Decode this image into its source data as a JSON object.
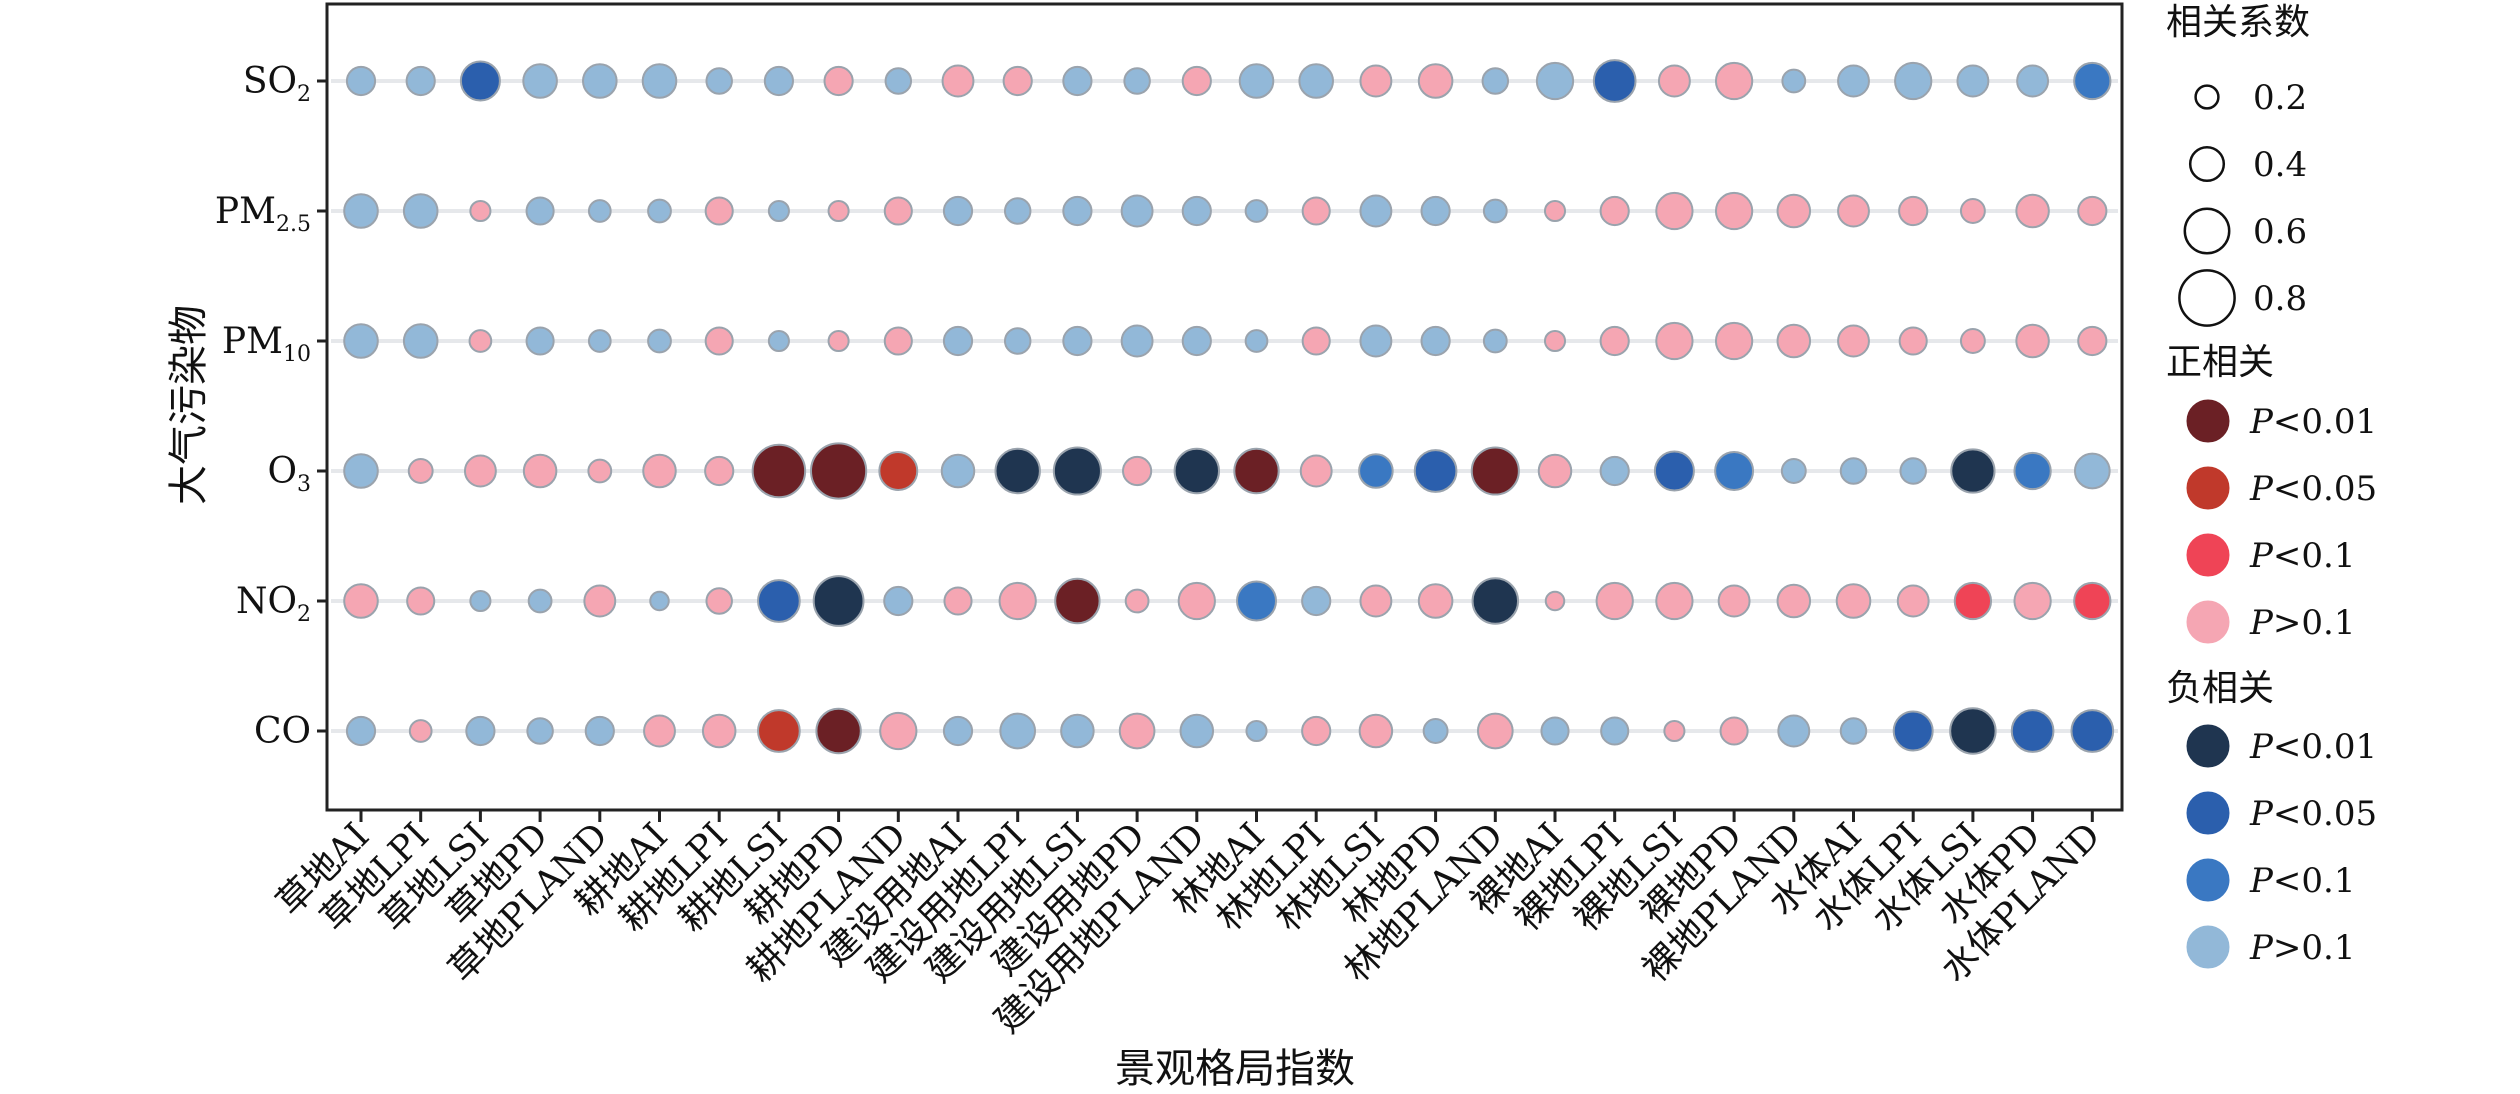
{
  "chart_data": {
    "type": "scatter",
    "subtype": "bubble-correlation-matrix",
    "xlabel": "景观格局指数",
    "ylabel": "大气污染物",
    "x_categories": [
      "草地AI",
      "草地LPI",
      "草地LSI",
      "草地PD",
      "草地PLAND",
      "耕地AI",
      "耕地LPI",
      "耕地LSI",
      "耕地PD",
      "耕地PLAND",
      "建设用地AI",
      "建设用地LPI",
      "建设用地LSI",
      "建设用地PD",
      "建设用地PLAND",
      "林地AI",
      "林地LPI",
      "林地LSI",
      "林地PD",
      "林地PLAND",
      "裸地AI",
      "裸地LPI",
      "裸地LSI",
      "裸地PD",
      "裸地PLAND",
      "水体AI",
      "水体LPI",
      "水体LSI",
      "水体PD",
      "水体PLAND"
    ],
    "y_categories": [
      {
        "base": "SO",
        "sub": "2"
      },
      {
        "base": "PM",
        "sub": "2.5"
      },
      {
        "base": "PM",
        "sub": "10"
      },
      {
        "base": "O",
        "sub": "3"
      },
      {
        "base": "NO",
        "sub": "2"
      },
      {
        "base": "CO",
        "sub": ""
      }
    ],
    "grid": "horizontal-guides",
    "legend": {
      "position": "right",
      "size_title": "相关系数",
      "size_entries": [
        0.2,
        0.4,
        0.6,
        0.8
      ],
      "positive_title": "正相关",
      "negative_title": "负相关",
      "p_prefix": "P",
      "sig_labels": [
        "<0.01",
        "<0.05",
        "<0.1",
        ">0.1"
      ]
    },
    "colors": {
      "positive": [
        "#6b2025",
        "#c0392b",
        "#ef4456",
        "#f5a6b3"
      ],
      "negative": [
        "#1f3550",
        "#2b5fad",
        "#3a78c2",
        "#92b8d8"
      ],
      "bubble_edge": "#9aa3ad",
      "guide": "#e6e8eb"
    },
    "rows": [
      {
        "pollutant": "SO2",
        "r": [
          -0.3,
          -0.3,
          -0.5,
          -0.4,
          -0.4,
          -0.4,
          -0.25,
          -0.3,
          0.3,
          -0.25,
          0.35,
          0.3,
          -0.3,
          -0.25,
          0.3,
          -0.4,
          -0.4,
          0.35,
          0.4,
          -0.25,
          -0.45,
          -0.55,
          0.35,
          0.45,
          -0.2,
          -0.35,
          -0.45,
          -0.35,
          -0.35,
          -0.45
        ],
        "sig": [
          3,
          3,
          1,
          3,
          3,
          3,
          3,
          3,
          3,
          3,
          3,
          3,
          3,
          3,
          3,
          3,
          3,
          3,
          3,
          3,
          3,
          1,
          3,
          3,
          3,
          3,
          3,
          3,
          3,
          2
        ]
      },
      {
        "pollutant": "PM2.5",
        "r": [
          -0.4,
          -0.4,
          0.15,
          -0.28,
          -0.18,
          -0.2,
          0.28,
          -0.15,
          0.15,
          0.28,
          -0.3,
          -0.25,
          -0.3,
          -0.35,
          -0.3,
          -0.18,
          0.28,
          -0.35,
          -0.3,
          -0.2,
          0.15,
          0.3,
          0.45,
          0.45,
          0.38,
          0.35,
          0.3,
          0.22,
          0.38,
          0.3
        ],
        "sig": [
          3,
          3,
          3,
          3,
          3,
          3,
          3,
          3,
          3,
          3,
          3,
          3,
          3,
          3,
          3,
          3,
          3,
          3,
          3,
          3,
          3,
          3,
          3,
          3,
          3,
          3,
          3,
          3,
          3,
          3
        ]
      },
      {
        "pollutant": "PM10",
        "r": [
          -0.4,
          -0.4,
          0.18,
          -0.28,
          -0.18,
          -0.2,
          0.28,
          -0.15,
          0.15,
          0.28,
          -0.3,
          -0.25,
          -0.3,
          -0.35,
          -0.3,
          -0.18,
          0.28,
          -0.35,
          -0.3,
          -0.2,
          0.15,
          0.3,
          0.45,
          0.45,
          0.38,
          0.35,
          0.28,
          0.22,
          0.38,
          0.3
        ],
        "sig": [
          3,
          3,
          3,
          3,
          3,
          3,
          3,
          3,
          3,
          3,
          3,
          3,
          3,
          3,
          3,
          3,
          3,
          3,
          3,
          3,
          3,
          3,
          3,
          3,
          3,
          3,
          3,
          3,
          3,
          3
        ]
      },
      {
        "pollutant": "O3",
        "r": [
          -0.4,
          0.22,
          0.35,
          0.38,
          0.2,
          0.38,
          0.3,
          0.75,
          0.8,
          0.48,
          -0.38,
          -0.6,
          -0.65,
          0.3,
          -0.6,
          0.6,
          0.35,
          -0.4,
          -0.55,
          0.65,
          0.38,
          -0.3,
          -0.5,
          -0.48,
          -0.22,
          -0.25,
          -0.25,
          -0.58,
          -0.45,
          -0.42
        ],
        "sig": [
          3,
          3,
          3,
          3,
          3,
          3,
          3,
          0,
          0,
          1,
          3,
          0,
          0,
          3,
          0,
          0,
          3,
          2,
          1,
          0,
          3,
          3,
          1,
          2,
          3,
          3,
          3,
          0,
          2,
          3
        ]
      },
      {
        "pollutant": "NO2",
        "r": [
          0.4,
          0.28,
          -0.15,
          -0.2,
          0.35,
          -0.12,
          0.25,
          -0.55,
          -0.7,
          -0.3,
          0.28,
          0.45,
          0.6,
          0.2,
          0.45,
          -0.5,
          -0.3,
          0.35,
          0.4,
          -0.62,
          0.12,
          0.45,
          0.45,
          0.35,
          0.38,
          0.4,
          0.35,
          0.45,
          0.45,
          0.45
        ],
        "sig": [
          3,
          3,
          3,
          3,
          3,
          3,
          3,
          1,
          0,
          3,
          3,
          3,
          0,
          3,
          3,
          2,
          3,
          3,
          3,
          0,
          3,
          3,
          3,
          3,
          3,
          3,
          3,
          2,
          3,
          2
        ]
      },
      {
        "pollutant": "CO",
        "r": [
          -0.3,
          0.18,
          -0.3,
          -0.25,
          -0.3,
          0.35,
          0.38,
          0.55,
          0.6,
          0.45,
          -0.3,
          -0.42,
          -0.38,
          0.42,
          -0.38,
          -0.15,
          0.3,
          0.38,
          -0.22,
          0.42,
          -0.28,
          -0.28,
          0.15,
          0.28,
          -0.35,
          -0.25,
          -0.5,
          -0.62,
          -0.55,
          -0.55
        ],
        "sig": [
          3,
          3,
          3,
          3,
          3,
          3,
          3,
          1,
          0,
          3,
          3,
          3,
          3,
          3,
          3,
          3,
          3,
          3,
          3,
          3,
          3,
          3,
          3,
          3,
          3,
          3,
          1,
          0,
          1,
          1
        ]
      }
    ]
  }
}
